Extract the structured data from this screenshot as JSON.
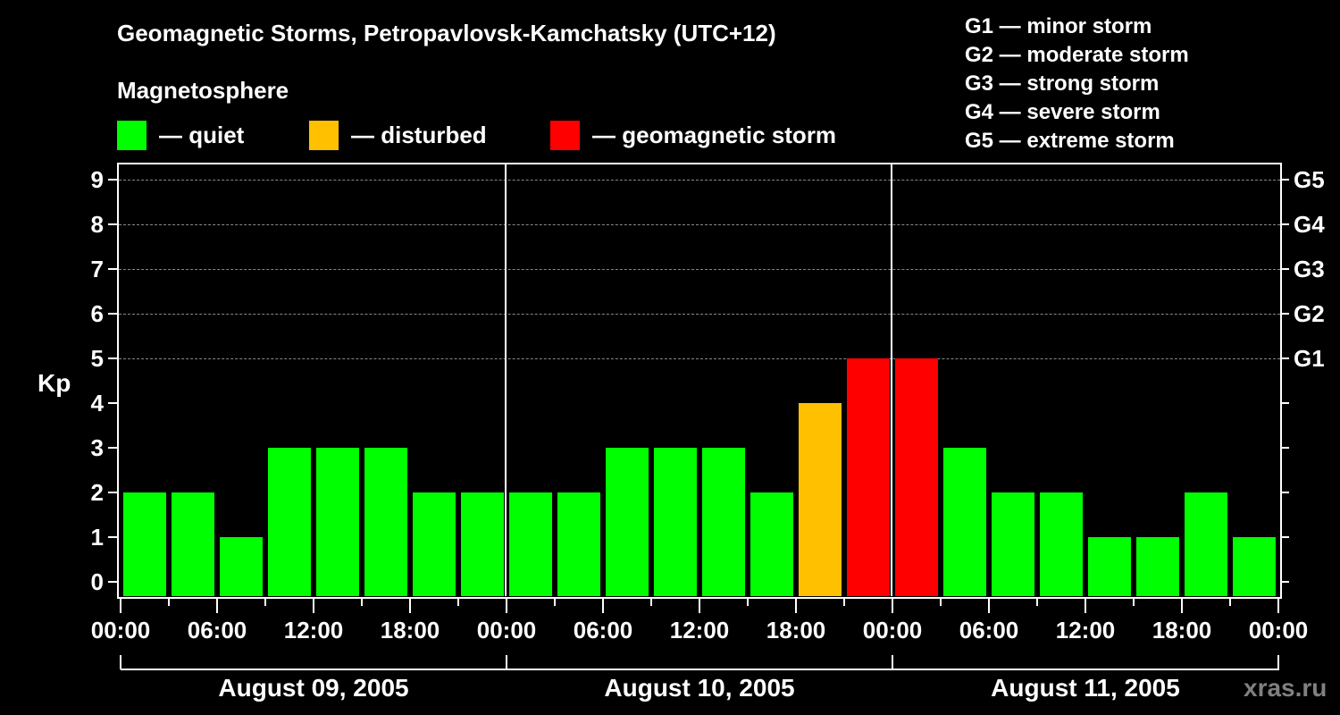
{
  "header": {
    "title": "Geomagnetic Storms, Petropavlovsk-Kamchatsky (UTC+12)",
    "subtitle": "Magnetosphere"
  },
  "legend": [
    {
      "label": "— quiet",
      "color": "#00ff00"
    },
    {
      "label": "— disturbed",
      "color": "#ffc000"
    },
    {
      "label": "— geomagnetic storm",
      "color": "#ff0000"
    }
  ],
  "g_legend": [
    "G1 — minor storm",
    "G2 — moderate storm",
    "G3 — strong storm",
    "G4 — severe storm",
    "G5 — extreme storm"
  ],
  "watermark": "xras.ru",
  "chart_data": {
    "type": "bar",
    "title": "Geomagnetic Storms, Petropavlovsk-Kamchatsky (UTC+12)",
    "ylabel": "Kp",
    "ylim": [
      0,
      9
    ],
    "yticks": [
      "0",
      "1",
      "2",
      "3",
      "4",
      "5",
      "6",
      "7",
      "8",
      "9"
    ],
    "right_axis": {
      "ticks": [
        5,
        6,
        7,
        8,
        9
      ],
      "labels": [
        "G1",
        "G2",
        "G3",
        "G4",
        "G5"
      ]
    },
    "grid": "dashed horizontal at Kp 5-9",
    "xtick_labels": [
      "00:00",
      "06:00",
      "12:00",
      "18:00",
      "00:00",
      "06:00",
      "12:00",
      "18:00",
      "00:00",
      "06:00",
      "12:00",
      "18:00",
      "00:00"
    ],
    "dates": [
      "August 09, 2005",
      "August 10, 2005",
      "August 11, 2005"
    ],
    "interval_hours": 3,
    "categories": [
      "Aug 09 00-03",
      "Aug 09 03-06",
      "Aug 09 06-09",
      "Aug 09 09-12",
      "Aug 09 12-15",
      "Aug 09 15-18",
      "Aug 09 18-21",
      "Aug 09 21-24",
      "Aug 10 00-03",
      "Aug 10 03-06",
      "Aug 10 06-09",
      "Aug 10 09-12",
      "Aug 10 12-15",
      "Aug 10 15-18",
      "Aug 10 18-21",
      "Aug 10 21-24",
      "Aug 11 00-03",
      "Aug 11 03-06",
      "Aug 11 06-09",
      "Aug 11 09-12",
      "Aug 11 12-15",
      "Aug 11 15-18",
      "Aug 11 18-21",
      "Aug 11 21-24"
    ],
    "values": [
      2,
      2,
      1,
      3,
      3,
      3,
      2,
      2,
      2,
      2,
      3,
      3,
      3,
      2,
      4,
      5,
      5,
      3,
      2,
      2,
      1,
      1,
      2,
      1
    ],
    "color_rule": {
      "quiet": "Kp<4 #00ff00",
      "disturbed": "Kp=4 #ffc000",
      "storm": "Kp>=5 #ff0000"
    },
    "legend": [
      "quiet",
      "disturbed",
      "geomagnetic storm"
    ]
  }
}
